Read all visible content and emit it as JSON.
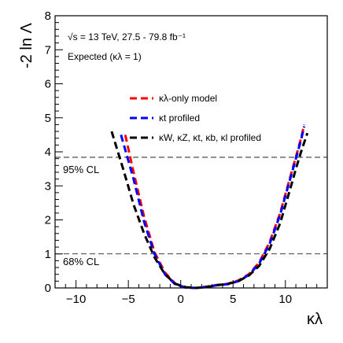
{
  "chart_data": {
    "type": "line",
    "xlabel": "κλ",
    "ylabel": "-2 ln Λ",
    "xlim": [
      -12,
      14
    ],
    "ylim": [
      0,
      8
    ],
    "xticks": [
      -10,
      -5,
      0,
      5,
      10
    ],
    "yticks": [
      0,
      1,
      2,
      3,
      4,
      5,
      6,
      7,
      8
    ],
    "grid": false,
    "legend_position": "top-right",
    "annotations": {
      "line1": "√s = 13 TeV, 27.5 - 79.8 fb⁻¹",
      "line2": "Expected (κλ = 1)"
    },
    "reference_lines": [
      {
        "y": 3.84,
        "label": "95% CL"
      },
      {
        "y": 1.0,
        "label": "68% CL"
      }
    ],
    "series": [
      {
        "name": "κλ-only model",
        "color": "#ff0000",
        "x": [
          -5.3,
          -4.5,
          -3.5,
          -2.5,
          -1.5,
          -0.5,
          0.5,
          1.5,
          2.5,
          3.5,
          4.5,
          5.5,
          6.5,
          7.5,
          8.5,
          9.5,
          10.5,
          11.0,
          11.5,
          11.8
        ],
        "y": [
          4.5,
          3.4,
          2.1,
          1.05,
          0.45,
          0.12,
          0.01,
          0.0,
          0.04,
          0.09,
          0.12,
          0.22,
          0.4,
          0.75,
          1.35,
          2.2,
          3.3,
          3.85,
          4.4,
          4.8
        ]
      },
      {
        "name": "κt profiled",
        "color": "#0000ff",
        "x": [
          -5.7,
          -4.5,
          -3.5,
          -2.5,
          -1.5,
          -0.5,
          0.5,
          1.5,
          2.5,
          3.5,
          4.5,
          5.5,
          6.5,
          7.5,
          8.5,
          9.5,
          10.5,
          11.0,
          11.5,
          11.8
        ],
        "y": [
          4.5,
          3.2,
          1.95,
          1.0,
          0.4,
          0.1,
          0.01,
          0.0,
          0.03,
          0.08,
          0.11,
          0.2,
          0.38,
          0.72,
          1.3,
          2.15,
          3.25,
          3.8,
          4.35,
          4.75
        ]
      },
      {
        "name": "κW, κZ, κt, κb, κl profiled",
        "color": "#000000",
        "x": [
          -6.6,
          -5.5,
          -4.5,
          -3.5,
          -2.5,
          -1.5,
          -0.5,
          0.5,
          1.5,
          2.5,
          3.5,
          4.5,
          5.5,
          6.5,
          7.5,
          8.5,
          9.5,
          10.5,
          11.0,
          11.5,
          12.1
        ],
        "y": [
          4.6,
          3.5,
          2.45,
          1.6,
          0.9,
          0.4,
          0.12,
          0.02,
          0.0,
          0.03,
          0.08,
          0.12,
          0.2,
          0.36,
          0.65,
          1.15,
          1.9,
          2.95,
          3.5,
          4.0,
          4.55
        ]
      }
    ]
  }
}
